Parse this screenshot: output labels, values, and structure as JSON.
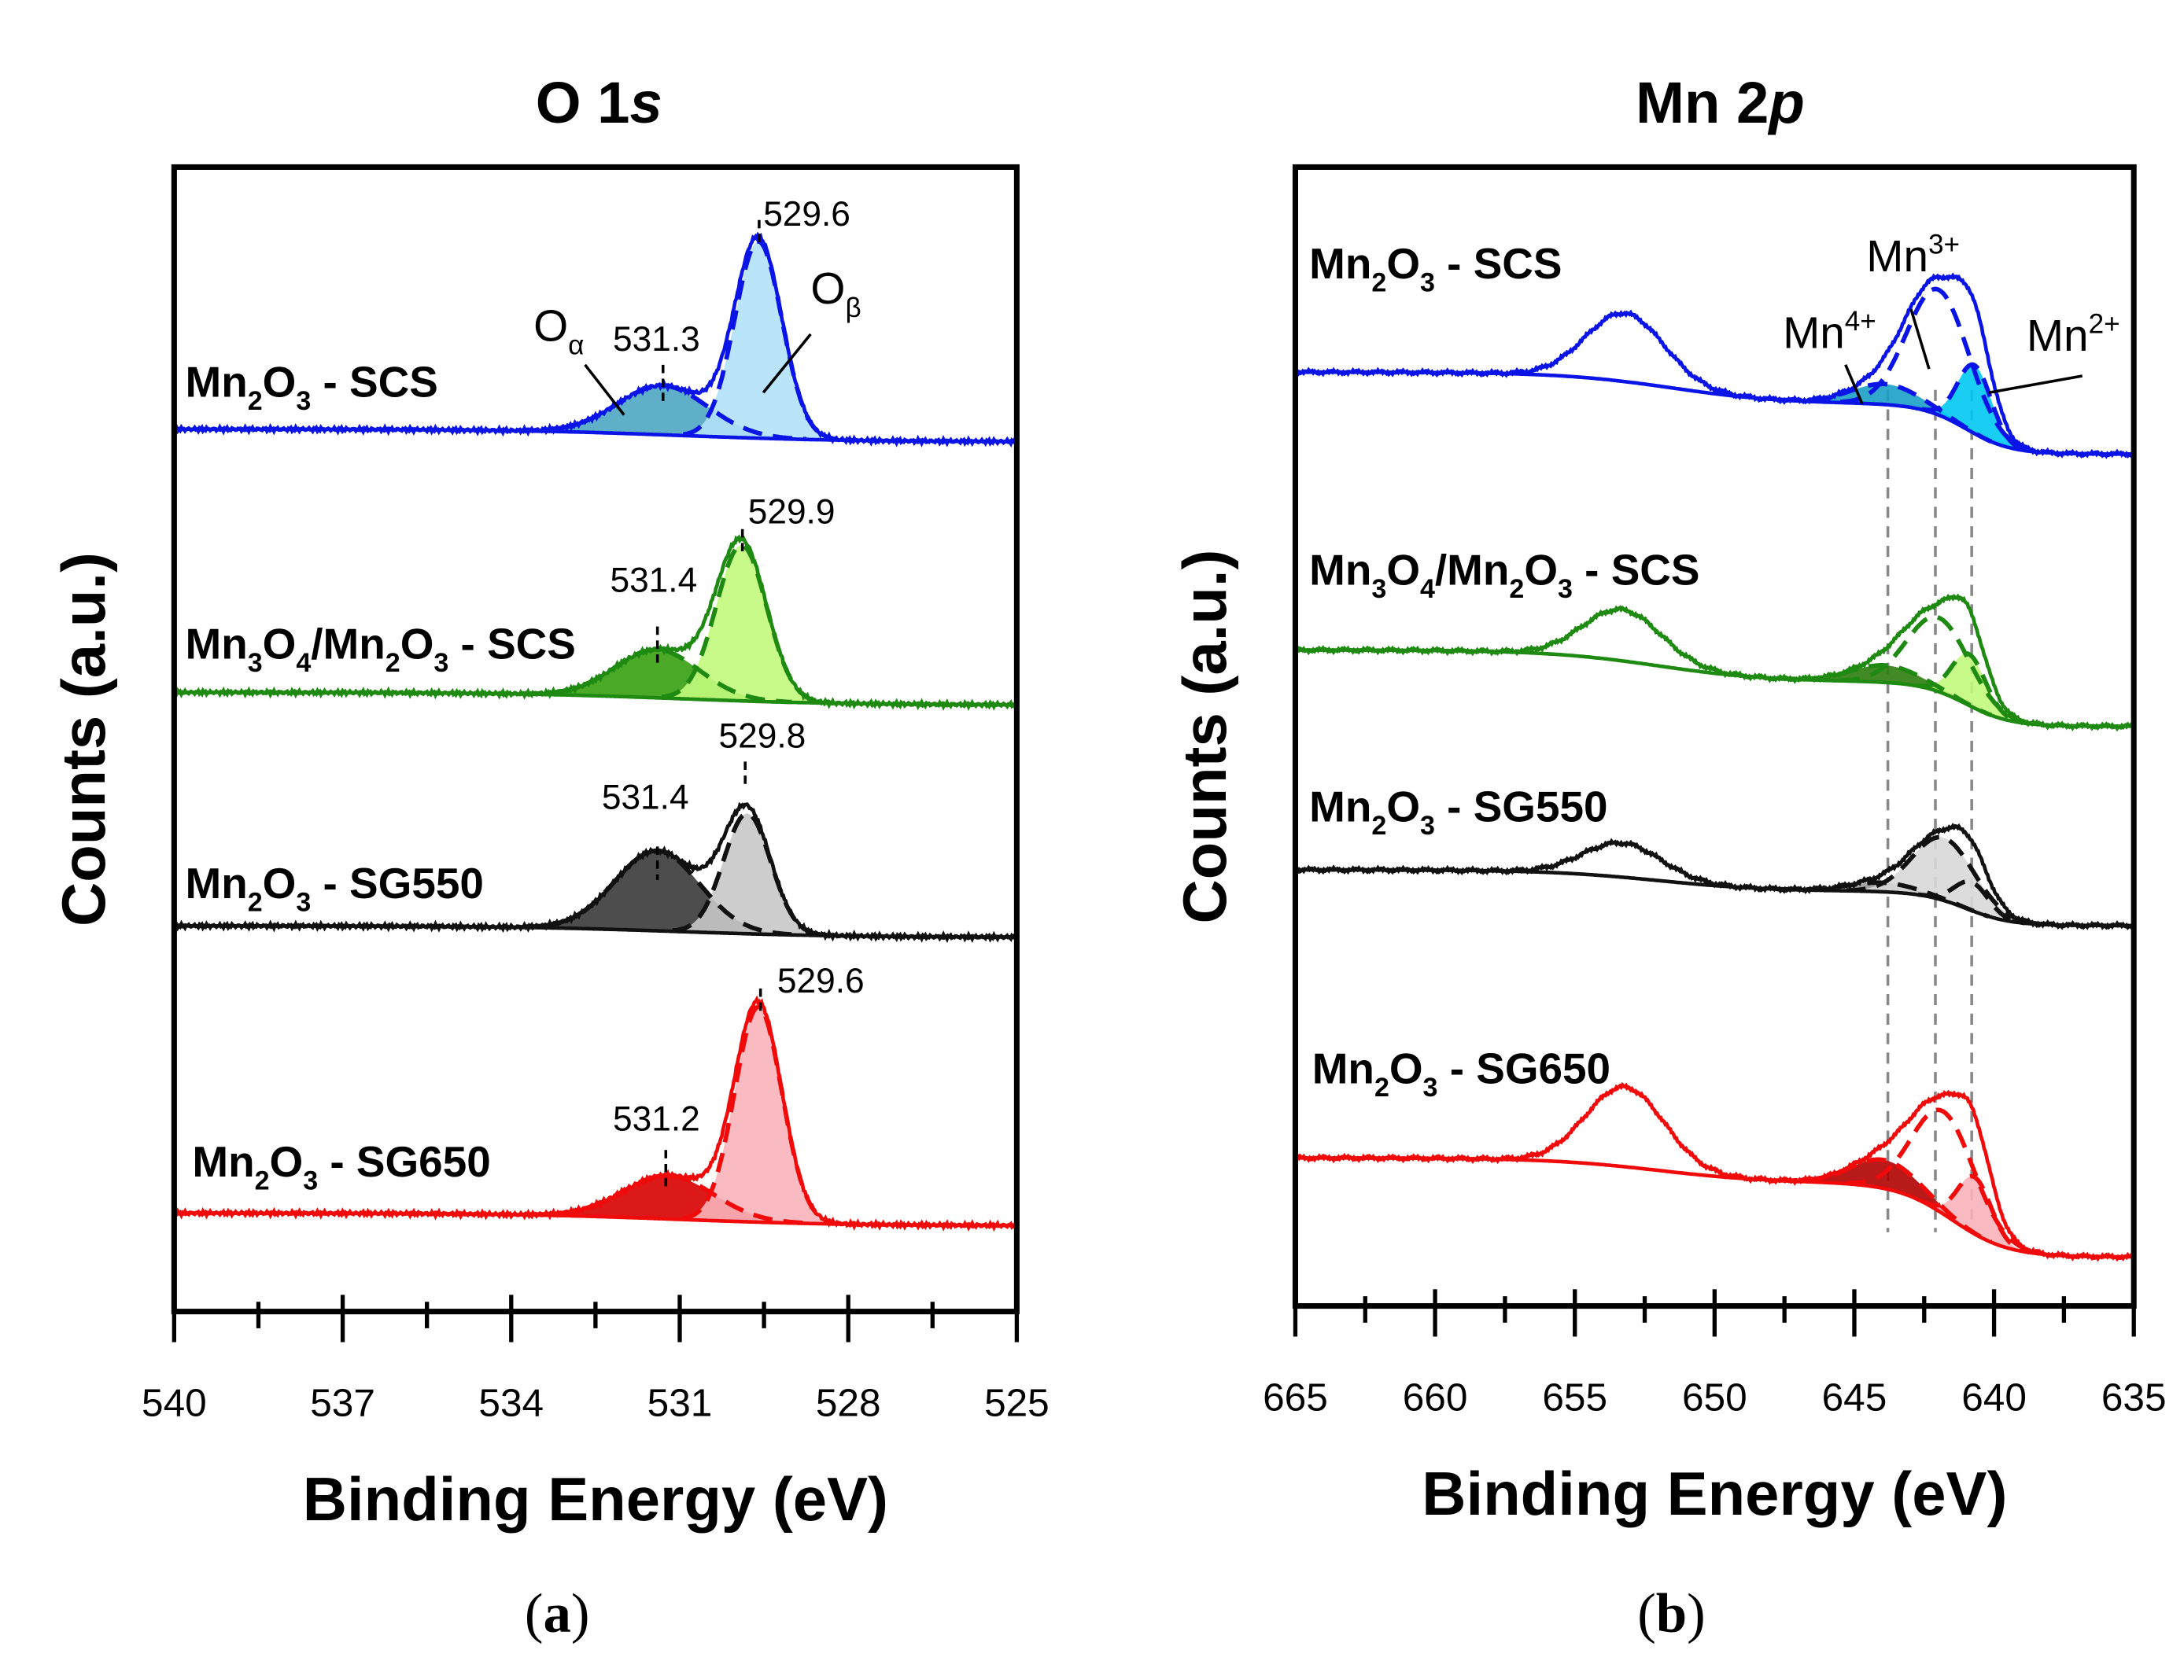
{
  "chart_data": [
    {
      "id": "a",
      "type": "line",
      "panel_label": "(a)",
      "title": "O 1",
      "title_italic": "s",
      "xlabel": "Binding Energy (eV)",
      "ylabel": "Counts (a.u.)",
      "xlim": [
        540,
        525
      ],
      "ylim": [
        0,
        100
      ],
      "major_ticks": [
        540,
        537,
        534,
        531,
        528,
        525
      ],
      "minor_step": 1.5,
      "spectra": [
        {
          "name": [
            [
              "Mn",
              ""
            ],
            [
              "2",
              "sub"
            ],
            [
              "O",
              ""
            ],
            [
              "3",
              "sub"
            ],
            [
              " - SCS",
              ""
            ]
          ],
          "color": "#0a14e6",
          "background": {
            "level": 76.0,
            "steps": [
              {
                "center": 531,
                "height": 1.1,
                "width": 1.5
              }
            ]
          },
          "components": [
            {
              "label": "O-alpha",
              "center": 531.3,
              "amp": 4.3,
              "sigma": 0.8,
              "fill": "#4ea6c2"
            },
            {
              "label": "O-beta",
              "center": 529.6,
              "amp": 17.2,
              "sigma": 0.42,
              "fill": "#b3e1f8"
            }
          ]
        },
        {
          "name": [
            [
              "Mn",
              ""
            ],
            [
              "3",
              "sub"
            ],
            [
              "O",
              ""
            ],
            [
              "4",
              "sub"
            ],
            [
              "/Mn",
              ""
            ],
            [
              "2",
              "sub"
            ],
            [
              "O",
              ""
            ],
            [
              "3",
              "sub"
            ],
            [
              " - SCS",
              ""
            ]
          ],
          "color": "#1f8a12",
          "background": {
            "level": 53.0,
            "steps": [
              {
                "center": 531,
                "height": 1.1,
                "width": 1.5
              }
            ]
          },
          "components": [
            {
              "label": "O-alpha",
              "center": 531.4,
              "amp": 4.2,
              "sigma": 0.75,
              "fill": "#36a00e"
            },
            {
              "label": "O-beta",
              "center": 529.9,
              "amp": 13.6,
              "sigma": 0.45,
              "fill": "#c2f97c"
            }
          ]
        },
        {
          "name": [
            [
              "Mn",
              ""
            ],
            [
              "2",
              "sub"
            ],
            [
              "O",
              ""
            ],
            [
              "3",
              "sub"
            ],
            [
              " - SG550",
              ""
            ]
          ],
          "color": "#111111",
          "background": {
            "level": 32.7,
            "steps": [
              {
                "center": 531,
                "height": 1.0,
                "width": 1.5
              }
            ]
          },
          "components": [
            {
              "label": "O-alpha",
              "center": 531.4,
              "amp": 7.0,
              "sigma": 0.75,
              "fill": "#3a3a3a"
            },
            {
              "label": "O-beta",
              "center": 529.8,
              "amp": 10.5,
              "sigma": 0.42,
              "fill": "#c8c8c8"
            }
          ]
        },
        {
          "name": [
            [
              "Mn",
              ""
            ],
            [
              "2",
              "sub"
            ],
            [
              "O",
              ""
            ],
            [
              "3",
              "sub"
            ],
            [
              " - SG650",
              ""
            ]
          ],
          "color": "#f00a0a",
          "background": {
            "level": 7.5,
            "steps": [
              {
                "center": 531,
                "height": 1.1,
                "width": 1.5
              }
            ]
          },
          "components": [
            {
              "label": "O-alpha",
              "center": 531.2,
              "amp": 3.8,
              "sigma": 0.8,
              "fill": "#d80000"
            },
            {
              "label": "O-beta",
              "center": 529.6,
              "amp": 18.8,
              "sigma": 0.42,
              "fill": "#f8b4ba"
            }
          ]
        }
      ],
      "annotations": [
        {
          "text": [
            [
              "529.6",
              ""
            ]
          ],
          "x": 529.6
        },
        {
          "text": [
            [
              "531.3",
              ""
            ]
          ],
          "x": 531.3
        },
        {
          "text": [
            [
              "O",
              ""
            ],
            [
              "α",
              "sub"
            ]
          ],
          "x": 531.9
        },
        {
          "text": [
            [
              "O",
              ""
            ],
            [
              "β",
              "sub"
            ]
          ],
          "x": 529.0
        },
        {
          "text": [
            [
              "529.9",
              ""
            ]
          ],
          "x": 529.9
        },
        {
          "text": [
            [
              "531.4",
              ""
            ]
          ],
          "x": 531.4
        },
        {
          "text": [
            [
              "529.8",
              ""
            ]
          ],
          "x": 529.8
        },
        {
          "text": [
            [
              "531.4",
              ""
            ]
          ],
          "x": 531.4
        },
        {
          "text": [
            [
              "529.6",
              ""
            ]
          ],
          "x": 529.6
        },
        {
          "text": [
            [
              "531.2",
              ""
            ]
          ],
          "x": 531.2
        }
      ]
    },
    {
      "id": "b",
      "type": "line",
      "panel_label": "(b)",
      "title": "Mn 2",
      "title_italic": "p",
      "xlabel": "Binding Energy (eV)",
      "ylabel": "Counts (a.u.)",
      "xlim": [
        665,
        635
      ],
      "ylim": [
        0,
        100
      ],
      "major_ticks": [
        665,
        660,
        655,
        650,
        645,
        640,
        635
      ],
      "minor_step": 2.5,
      "reference_lines": [
        643.8,
        642.1,
        640.8
      ],
      "spectra": [
        {
          "name": [
            [
              "Mn",
              ""
            ],
            [
              "2",
              "sub"
            ],
            [
              "O",
              ""
            ],
            [
              "3",
              "sub"
            ],
            [
              " - SCS",
              ""
            ]
          ],
          "color": "#0a14e6",
          "background": {
            "level": 74.8,
            "steps": [
              {
                "center": 641.0,
                "height": 4.4,
                "width": 0.8
              },
              {
                "center": 651.5,
                "height": 2.8,
                "width": 2.0
              }
            ]
          },
          "components": [
            {
              "label": "Mn4+",
              "center": 643.9,
              "amp": 1.8,
              "sigma": 1.2,
              "fill": "#1aa0c8",
              "dashed": true
            },
            {
              "label": "Mn3+",
              "center": 642.0,
              "amp": 11.0,
              "sigma": 1.1,
              "fill": "none",
              "dashed": true
            },
            {
              "label": "Mn2+",
              "center": 640.7,
              "amp": 6.0,
              "sigma": 0.6,
              "fill": "#00c8f2",
              "dashed": true
            },
            {
              "label": "satellite",
              "center": 653.2,
              "amp": 6.0,
              "sigma": 1.4,
              "fill": "none",
              "dashed": false
            }
          ]
        },
        {
          "name": [
            [
              "Mn",
              ""
            ],
            [
              "3",
              "sub"
            ],
            [
              "O",
              ""
            ],
            [
              "4",
              "sub"
            ],
            [
              "/Mn",
              ""
            ],
            [
              "2",
              "sub"
            ],
            [
              "O",
              ""
            ],
            [
              "3",
              "sub"
            ],
            [
              " - SCS",
              ""
            ]
          ],
          "color": "#1f8a12",
          "background": {
            "level": 50.9,
            "steps": [
              {
                "center": 641.0,
                "height": 3.9,
                "width": 0.8
              },
              {
                "center": 652.0,
                "height": 2.8,
                "width": 2.0
              }
            ]
          },
          "components": [
            {
              "label": "Mn4+",
              "center": 643.9,
              "amp": 1.5,
              "sigma": 1.2,
              "fill": "#2e7d0e",
              "dashed": true
            },
            {
              "label": "Mn3+",
              "center": 642.0,
              "amp": 6.5,
              "sigma": 1.1,
              "fill": "none",
              "dashed": true
            },
            {
              "label": "Mn2+",
              "center": 640.9,
              "amp": 4.5,
              "sigma": 0.6,
              "fill": "#c2f97c",
              "dashed": true
            },
            {
              "label": "satellite",
              "center": 653.3,
              "amp": 4.5,
              "sigma": 1.4,
              "fill": "none",
              "dashed": false
            }
          ]
        },
        {
          "name": [
            [
              "Mn",
              ""
            ],
            [
              "2",
              "sub"
            ],
            [
              "O",
              ""
            ],
            [
              "3",
              "sub"
            ],
            [
              " - SG550",
              ""
            ]
          ],
          "color": "#111111",
          "background": {
            "level": 33.4,
            "steps": [
              {
                "center": 641.0,
                "height": 3.0,
                "width": 0.8
              },
              {
                "center": 652.0,
                "height": 1.9,
                "width": 2.0
              }
            ]
          },
          "components": [
            {
              "label": "Mn4+",
              "center": 644.0,
              "amp": 0.8,
              "sigma": 1.2,
              "fill": "#9a9a9a",
              "dashed": true
            },
            {
              "label": "Mn3+",
              "center": 641.8,
              "amp": 5.5,
              "sigma": 1.1,
              "fill": "#d8d8d8",
              "dashed": true
            },
            {
              "label": "Mn2+",
              "center": 640.8,
              "amp": 2.5,
              "sigma": 0.6,
              "fill": "none",
              "dashed": true
            },
            {
              "label": "satellite",
              "center": 653.3,
              "amp": 3.0,
              "sigma": 1.4,
              "fill": "none",
              "dashed": false
            }
          ]
        },
        {
          "name": [
            [
              "Mn",
              ""
            ],
            [
              "2",
              "sub"
            ],
            [
              "O",
              ""
            ],
            [
              "3",
              "sub"
            ],
            [
              " - SG650",
              ""
            ]
          ],
          "color": "#f00a0a",
          "background": {
            "level": 4.3,
            "steps": [
              {
                "center": 641.5,
                "height": 6.5,
                "width": 1.0
              },
              {
                "center": 652.0,
                "height": 2.2,
                "width": 2.0
              }
            ]
          },
          "components": [
            {
              "label": "Mn4+",
              "center": 643.9,
              "amp": 2.5,
              "sigma": 1.2,
              "fill": "#b00000",
              "dashed": true
            },
            {
              "label": "Mn3+",
              "center": 641.8,
              "amp": 9.0,
              "sigma": 1.1,
              "fill": "none",
              "dashed": true
            },
            {
              "label": "Mn2+",
              "center": 640.7,
              "amp": 5.0,
              "sigma": 0.6,
              "fill": "#f8b4ba",
              "dashed": true
            },
            {
              "label": "satellite",
              "center": 653.2,
              "amp": 7.0,
              "sigma": 1.4,
              "fill": "none",
              "dashed": false
            }
          ]
        }
      ],
      "annotations": [
        {
          "text": [
            [
              "Mn",
              ""
            ],
            [
              "3+",
              "sup"
            ]
          ],
          "x": 642.0
        },
        {
          "text": [
            [
              "Mn",
              ""
            ],
            [
              "4+",
              "sup"
            ]
          ],
          "x": 643.9
        },
        {
          "text": [
            [
              "Mn",
              ""
            ],
            [
              "2+",
              "sup"
            ]
          ],
          "x": 640.7
        }
      ]
    }
  ]
}
